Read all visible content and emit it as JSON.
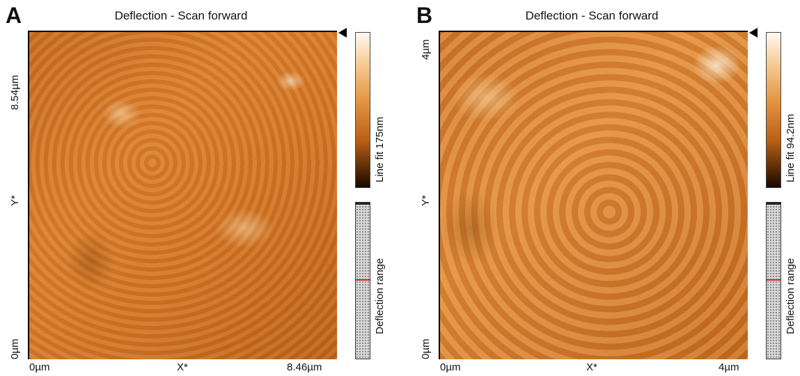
{
  "panels": [
    {
      "letter": "A",
      "title": "Deflection - Scan forward",
      "y_top": "8.54µm",
      "y_mid": "Y*",
      "y_bottom": "0µm",
      "x_left": "0µm",
      "x_mid": "X*",
      "x_right": "8.46µm",
      "colorbar_label": "Line fit 175nm",
      "range_label": "Deflection range"
    },
    {
      "letter": "B",
      "title": "Deflection - Scan forward",
      "y_top": "4µm",
      "y_mid": "Y*",
      "y_bottom": "0µm",
      "x_left": "0µm",
      "x_mid": "X*",
      "x_right": "4µm",
      "colorbar_label": "Line fit 94.2nm",
      "range_label": "Deflection range"
    }
  ],
  "colors": {
    "scan_base": "#d97e2c",
    "range_marker": "#cc2a2a"
  }
}
